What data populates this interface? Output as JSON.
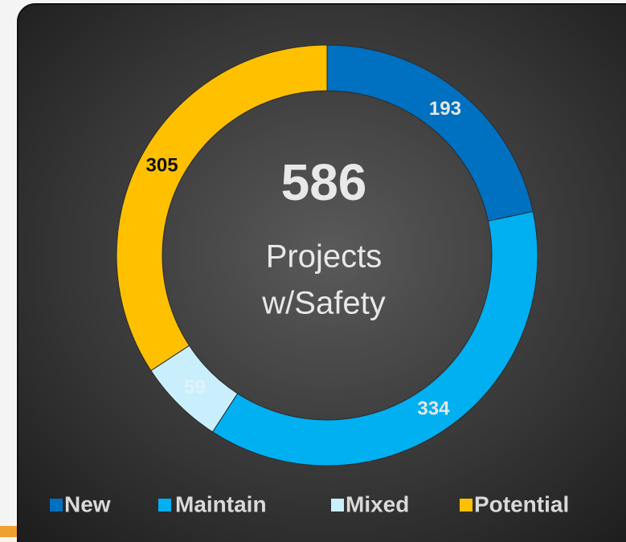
{
  "chart_data": {
    "type": "donut",
    "center_value": "586",
    "center_text": [
      "Projects",
      "w/Safety"
    ],
    "categories": [
      "New",
      "Maintain",
      "Mixed",
      "Potential"
    ],
    "values": [
      193,
      334,
      59,
      305
    ],
    "colors": [
      "#0070c0",
      "#00b0f0",
      "#c9effc",
      "#ffc000"
    ],
    "label_colors": [
      "#e6e6e6",
      "#e6e6e6",
      "#e0f4fb",
      "#111111"
    ],
    "legend": "bottom"
  }
}
